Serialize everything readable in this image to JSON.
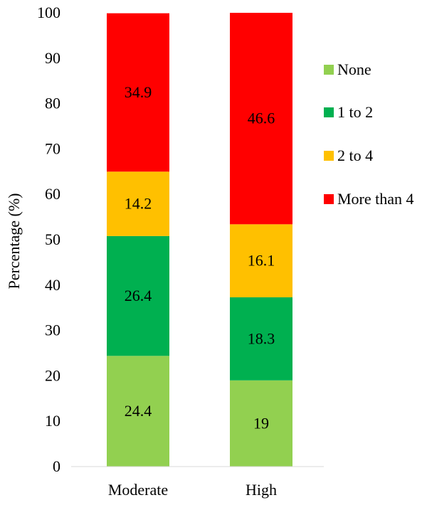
{
  "chart_data": {
    "type": "bar",
    "stacked": true,
    "title": "",
    "xlabel": "",
    "ylabel": "Percentage (%)",
    "ylim": [
      0,
      100
    ],
    "yticks": [
      0,
      10,
      20,
      30,
      40,
      50,
      60,
      70,
      80,
      90,
      100
    ],
    "categories": [
      "Moderate",
      "High"
    ],
    "series": [
      {
        "name": "None",
        "color": "#92D050",
        "values": [
          24.4,
          19
        ]
      },
      {
        "name": "1 to 2",
        "color": "#00B050",
        "values": [
          26.4,
          18.3
        ]
      },
      {
        "name": "2 to 4",
        "color": "#FFC000",
        "values": [
          14.2,
          16.1
        ]
      },
      {
        "name": "More than 4",
        "color": "#FF0000",
        "values": [
          34.9,
          46.6
        ]
      }
    ],
    "legend": {
      "position": "right"
    },
    "grid": false
  }
}
